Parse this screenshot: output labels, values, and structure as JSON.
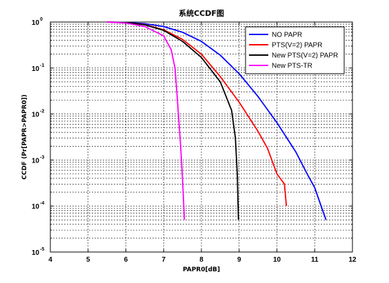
{
  "chart_data": {
    "type": "line",
    "title": "系统CCDF图",
    "xlabel": "PAPR0[dB]",
    "ylabel": "CCDF (Pr[PAPR>PAPR0])",
    "xlim": [
      4,
      12
    ],
    "ylim": [
      1e-05,
      1
    ],
    "yscale": "log",
    "grid": true,
    "legend_position": "top-right",
    "x_ticks": [
      "4",
      "5",
      "6",
      "7",
      "8",
      "9",
      "10",
      "11",
      "12"
    ],
    "y_ticks": [
      {
        "base": "10",
        "exp": "0"
      },
      {
        "base": "10",
        "exp": "-1"
      },
      {
        "base": "10",
        "exp": "-2"
      },
      {
        "base": "10",
        "exp": "-3"
      },
      {
        "base": "10",
        "exp": "-4"
      },
      {
        "base": "10",
        "exp": "-5"
      }
    ],
    "series": [
      {
        "name": "NO PAPR",
        "color": "#0000ff",
        "points": [
          [
            5.5,
            1
          ],
          [
            6.0,
            0.98
          ],
          [
            6.5,
            0.92
          ],
          [
            7.0,
            0.8
          ],
          [
            7.5,
            0.6
          ],
          [
            8.0,
            0.38
          ],
          [
            8.5,
            0.19
          ],
          [
            9.0,
            0.075
          ],
          [
            9.5,
            0.024
          ],
          [
            10.0,
            0.0065
          ],
          [
            10.5,
            0.0015
          ],
          [
            10.8,
            0.0005
          ],
          [
            11.0,
            0.00025
          ],
          [
            11.2,
            8.5e-05
          ],
          [
            11.3,
            5e-05
          ]
        ]
      },
      {
        "name": "PTS(V=2) PAPR",
        "color": "#ff0000",
        "points": [
          [
            5.5,
            1
          ],
          [
            6.0,
            0.97
          ],
          [
            6.5,
            0.88
          ],
          [
            7.0,
            0.68
          ],
          [
            7.5,
            0.42
          ],
          [
            8.0,
            0.2
          ],
          [
            8.5,
            0.065
          ],
          [
            9.0,
            0.018
          ],
          [
            9.5,
            0.0042
          ],
          [
            9.75,
            0.0018
          ],
          [
            10.0,
            0.0005
          ],
          [
            10.2,
            0.0003
          ],
          [
            10.25,
            0.0001
          ]
        ]
      },
      {
        "name": "New PTS(V=2) PAPR",
        "color": "#000000",
        "points": [
          [
            5.5,
            1
          ],
          [
            6.0,
            0.97
          ],
          [
            6.5,
            0.87
          ],
          [
            7.0,
            0.66
          ],
          [
            7.5,
            0.38
          ],
          [
            8.0,
            0.17
          ],
          [
            8.5,
            0.05
          ],
          [
            8.8,
            0.012
          ],
          [
            8.9,
            0.003
          ],
          [
            8.95,
            0.0005
          ],
          [
            8.98,
            5e-05
          ]
        ]
      },
      {
        "name": "New PTS-TR",
        "color": "#ff00ff",
        "points": [
          [
            5.5,
            1
          ],
          [
            6.0,
            0.95
          ],
          [
            6.5,
            0.8
          ],
          [
            7.0,
            0.5
          ],
          [
            7.2,
            0.25
          ],
          [
            7.3,
            0.1
          ],
          [
            7.35,
            0.03
          ],
          [
            7.4,
            0.008
          ],
          [
            7.45,
            0.002
          ],
          [
            7.5,
            0.0004
          ],
          [
            7.55,
            5e-05
          ]
        ]
      }
    ]
  }
}
